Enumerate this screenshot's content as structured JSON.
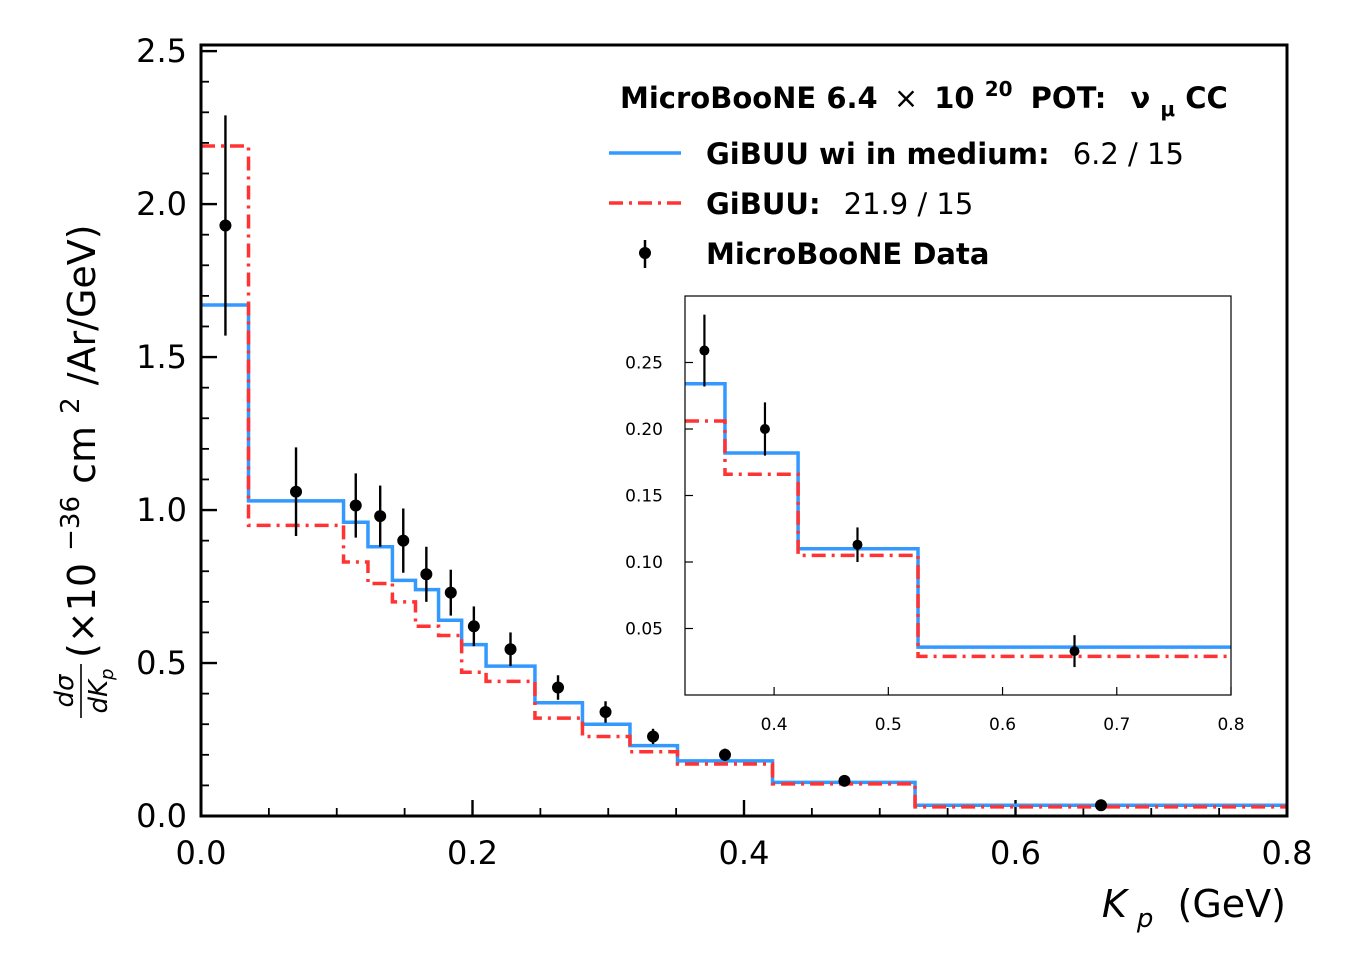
{
  "legend": {
    "title_prefix": "MicroBooNE 6.4",
    "title_times": "×",
    "title_base": "10",
    "title_exp": "20",
    "title_pot": "POT:",
    "title_nu": "ν",
    "title_mu": "μ",
    "title_cc": "CC",
    "entries": [
      {
        "label": "GiBUU wi in medium:",
        "chi2": "6.2 / 15"
      },
      {
        "label": "GiBUU:",
        "chi2": "21.9 / 15"
      },
      {
        "label": "MicroBooNE Data",
        "chi2": ""
      }
    ]
  },
  "axes": {
    "xlabel_var": "K",
    "xlabel_sub": "p",
    "xlabel_unit": "(GeV)",
    "ylabel_unit": "(×10",
    "ylabel_exp": "−36",
    "ylabel_cm": "cm",
    "ylabel_cm_exp": "2",
    "ylabel_tail": "/Ar/GeV)",
    "ylabel_num": "dσ",
    "ylabel_den": "dK"
  },
  "colors": {
    "gibuu_in_medium": "#3399ff",
    "gibuu": "#ff3333",
    "data": "#000000"
  },
  "chart_data": [
    {
      "type": "line",
      "xlabel": "Kp (GeV)",
      "ylabel": "dσ/dKp (×10^-36 cm^2/Ar/GeV)",
      "xlim": [
        0.0,
        0.8
      ],
      "ylim": [
        0.0,
        2.52
      ],
      "xticks": [
        0.0,
        0.2,
        0.4,
        0.6,
        0.8
      ],
      "xtick_labels": [
        "0.0",
        "0.2",
        "0.4",
        "0.6",
        "0.8"
      ],
      "yticks": [
        0.0,
        0.5,
        1.0,
        1.5,
        2.0,
        2.5
      ],
      "ytick_labels": [
        "0.0",
        "0.5",
        "1.0",
        "1.5",
        "2.0",
        "2.5"
      ],
      "grid": false,
      "legend_position": "top-right",
      "bin_edges": [
        0.0,
        0.035,
        0.105,
        0.123,
        0.141,
        0.158,
        0.175,
        0.192,
        0.21,
        0.246,
        0.281,
        0.316,
        0.351,
        0.421,
        0.526,
        0.8
      ],
      "series": [
        {
          "name": "GiBUU wi in medium",
          "style": "solid",
          "values": [
            1.67,
            1.03,
            0.96,
            0.88,
            0.77,
            0.74,
            0.64,
            0.56,
            0.49,
            0.37,
            0.3,
            0.23,
            0.18,
            0.11,
            0.035
          ]
        },
        {
          "name": "GiBUU",
          "style": "dashdot",
          "values": [
            2.19,
            0.95,
            0.83,
            0.76,
            0.7,
            0.62,
            0.59,
            0.47,
            0.44,
            0.32,
            0.26,
            0.21,
            0.17,
            0.105,
            0.03
          ]
        },
        {
          "name": "MicroBooNE Data",
          "style": "errorbar",
          "x": [
            0.018,
            0.07,
            0.114,
            0.132,
            0.149,
            0.166,
            0.184,
            0.201,
            0.228,
            0.263,
            0.298,
            0.333,
            0.386,
            0.474,
            0.663
          ],
          "y": [
            1.93,
            1.06,
            1.015,
            0.98,
            0.9,
            0.79,
            0.73,
            0.62,
            0.545,
            0.42,
            0.34,
            0.26,
            0.2,
            0.115,
            0.035
          ],
          "yerr": [
            0.36,
            0.145,
            0.105,
            0.1,
            0.105,
            0.09,
            0.075,
            0.065,
            0.055,
            0.04,
            0.035,
            0.025,
            0.02,
            0.012,
            0.01
          ]
        }
      ]
    },
    {
      "type": "line",
      "inset": true,
      "xlim": [
        0.322,
        0.8
      ],
      "ylim": [
        0.0,
        0.3
      ],
      "xticks": [
        0.4,
        0.5,
        0.6,
        0.7,
        0.8
      ],
      "xtick_labels": [
        "0.4",
        "0.5",
        "0.6",
        "0.7",
        "0.8"
      ],
      "yticks": [
        0.05,
        0.1,
        0.15,
        0.2,
        0.25
      ],
      "ytick_labels": [
        "0.05",
        "0.10",
        "0.15",
        "0.20",
        "0.25"
      ],
      "bin_edges": [
        0.322,
        0.357,
        0.421,
        0.526,
        0.8
      ],
      "series": [
        {
          "name": "GiBUU wi in medium",
          "style": "solid",
          "values": [
            0.234,
            0.182,
            0.11,
            0.036
          ]
        },
        {
          "name": "GiBUU",
          "style": "dashdot",
          "values": [
            0.206,
            0.166,
            0.105,
            0.029
          ]
        },
        {
          "name": "MicroBooNE Data",
          "style": "errorbar",
          "x": [
            0.339,
            0.392,
            0.473,
            0.663
          ],
          "y": [
            0.259,
            0.2,
            0.113,
            0.033
          ],
          "yerr": [
            0.027,
            0.02,
            0.013,
            0.012
          ]
        }
      ]
    }
  ]
}
